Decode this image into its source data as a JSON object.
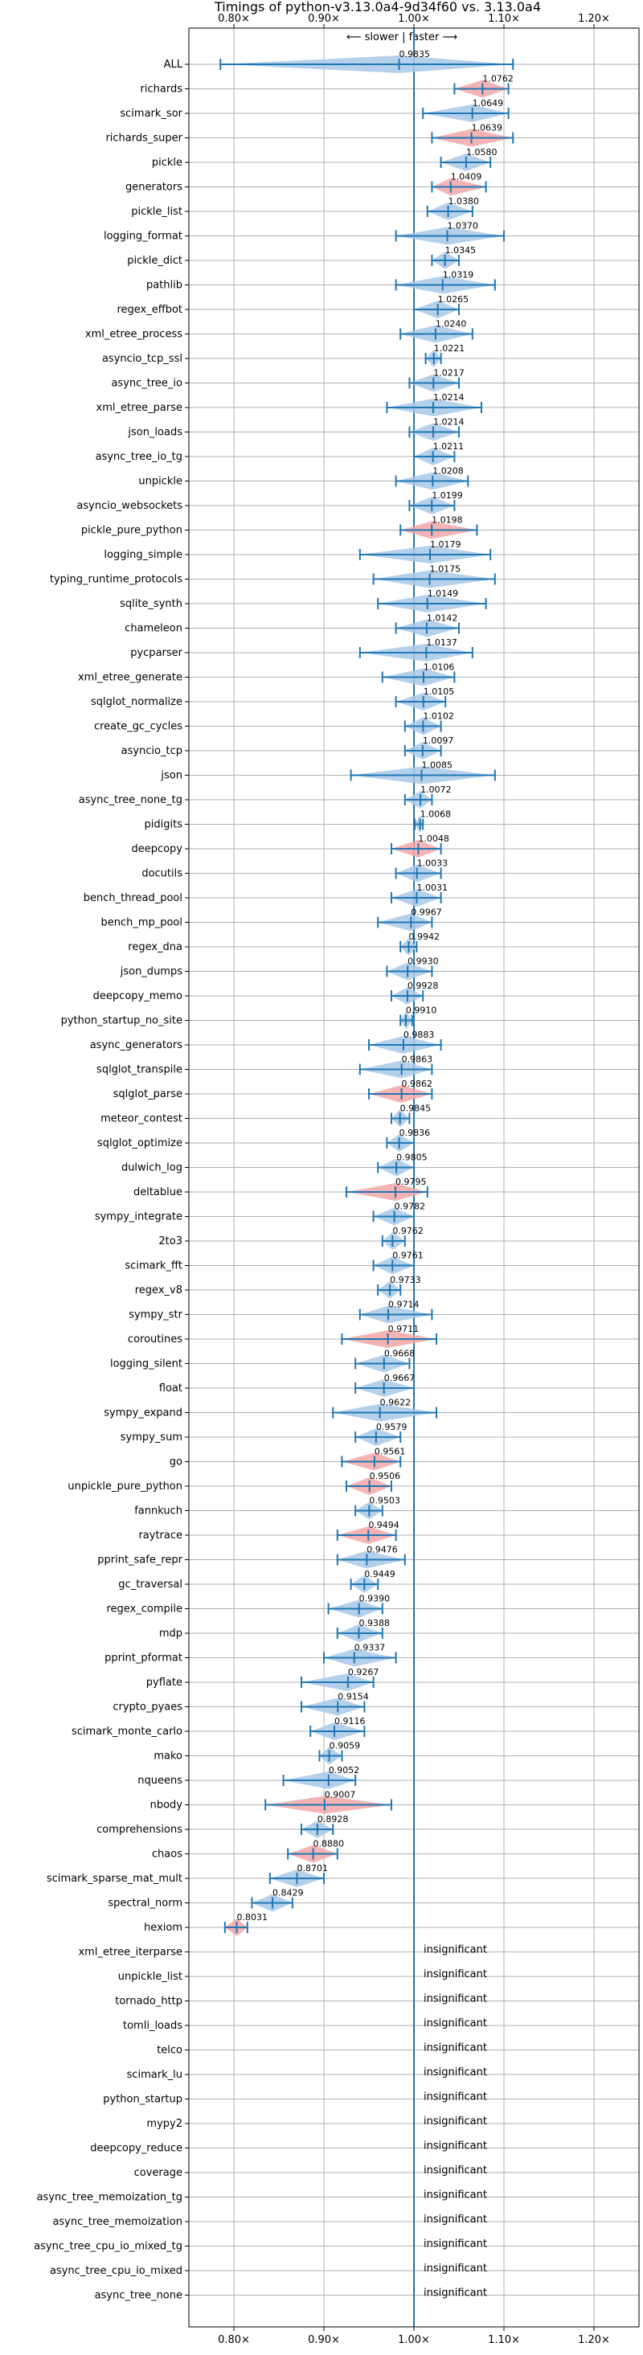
{
  "chart_data": {
    "type": "violin",
    "title": "Timings of python-v3.13.0a4-9d34f60 vs. 3.13.0a4",
    "direction_label": "⟵ slower | faster ⟶",
    "x_ticks": [
      "0.80×",
      "0.90×",
      "1.00×",
      "1.10×",
      "1.20×"
    ],
    "x_tick_values": [
      0.8,
      0.9,
      1.0,
      1.1,
      1.2
    ],
    "xlim": [
      0.75,
      1.25
    ],
    "grid": true,
    "colors": {
      "faster": "#a8c8e8",
      "slower": "#f4a6a6",
      "errorbar": "#1f77b4",
      "reference_line": "#1f77b4"
    },
    "insignificant_label": "insignificant",
    "benchmarks": [
      {
        "name": "ALL",
        "value": 0.9835,
        "display": "0.9835",
        "lo": 0.785,
        "hi": 1.11,
        "color": "faster"
      },
      {
        "name": "richards",
        "value": 1.0762,
        "display": "1.0762",
        "lo": 1.045,
        "hi": 1.105,
        "color": "slower"
      },
      {
        "name": "scimark_sor",
        "value": 1.0649,
        "display": "1.0649",
        "lo": 1.01,
        "hi": 1.105,
        "color": "faster"
      },
      {
        "name": "richards_super",
        "value": 1.0639,
        "display": "1.0639",
        "lo": 1.02,
        "hi": 1.11,
        "color": "slower"
      },
      {
        "name": "pickle",
        "value": 1.058,
        "display": "1.0580",
        "lo": 1.03,
        "hi": 1.085,
        "color": "faster"
      },
      {
        "name": "generators",
        "value": 1.0409,
        "display": "1.0409",
        "lo": 1.02,
        "hi": 1.08,
        "color": "slower"
      },
      {
        "name": "pickle_list",
        "value": 1.038,
        "display": "1.0380",
        "lo": 1.015,
        "hi": 1.065,
        "color": "faster"
      },
      {
        "name": "logging_format",
        "value": 1.037,
        "display": "1.0370",
        "lo": 0.98,
        "hi": 1.1,
        "color": "faster"
      },
      {
        "name": "pickle_dict",
        "value": 1.0345,
        "display": "1.0345",
        "lo": 1.02,
        "hi": 1.05,
        "color": "faster"
      },
      {
        "name": "pathlib",
        "value": 1.0319,
        "display": "1.0319",
        "lo": 0.98,
        "hi": 1.09,
        "color": "faster"
      },
      {
        "name": "regex_effbot",
        "value": 1.0265,
        "display": "1.0265",
        "lo": 1.0,
        "hi": 1.05,
        "color": "faster"
      },
      {
        "name": "xml_etree_process",
        "value": 1.024,
        "display": "1.0240",
        "lo": 0.985,
        "hi": 1.065,
        "color": "faster"
      },
      {
        "name": "asyncio_tcp_ssl",
        "value": 1.0221,
        "display": "1.0221",
        "lo": 1.013,
        "hi": 1.03,
        "color": "faster"
      },
      {
        "name": "async_tree_io",
        "value": 1.0217,
        "display": "1.0217",
        "lo": 0.995,
        "hi": 1.05,
        "color": "faster"
      },
      {
        "name": "xml_etree_parse",
        "value": 1.0214,
        "display": "1.0214",
        "lo": 0.97,
        "hi": 1.075,
        "color": "faster"
      },
      {
        "name": "json_loads",
        "value": 1.0214,
        "display": "1.0214",
        "lo": 0.995,
        "hi": 1.05,
        "color": "faster"
      },
      {
        "name": "async_tree_io_tg",
        "value": 1.0211,
        "display": "1.0211",
        "lo": 1.0,
        "hi": 1.045,
        "color": "faster"
      },
      {
        "name": "unpickle",
        "value": 1.0208,
        "display": "1.0208",
        "lo": 0.98,
        "hi": 1.06,
        "color": "faster"
      },
      {
        "name": "asyncio_websockets",
        "value": 1.0199,
        "display": "1.0199",
        "lo": 0.995,
        "hi": 1.045,
        "color": "faster"
      },
      {
        "name": "pickle_pure_python",
        "value": 1.0198,
        "display": "1.0198",
        "lo": 0.985,
        "hi": 1.07,
        "color": "slower"
      },
      {
        "name": "logging_simple",
        "value": 1.0179,
        "display": "1.0179",
        "lo": 0.94,
        "hi": 1.085,
        "color": "faster"
      },
      {
        "name": "typing_runtime_protocols",
        "value": 1.0175,
        "display": "1.0175",
        "lo": 0.955,
        "hi": 1.09,
        "color": "faster"
      },
      {
        "name": "sqlite_synth",
        "value": 1.0149,
        "display": "1.0149",
        "lo": 0.96,
        "hi": 1.08,
        "color": "faster"
      },
      {
        "name": "chameleon",
        "value": 1.0142,
        "display": "1.0142",
        "lo": 0.98,
        "hi": 1.05,
        "color": "faster"
      },
      {
        "name": "pycparser",
        "value": 1.0137,
        "display": "1.0137",
        "lo": 0.94,
        "hi": 1.065,
        "color": "faster"
      },
      {
        "name": "xml_etree_generate",
        "value": 1.0106,
        "display": "1.0106",
        "lo": 0.965,
        "hi": 1.045,
        "color": "faster"
      },
      {
        "name": "sqlglot_normalize",
        "value": 1.0105,
        "display": "1.0105",
        "lo": 0.98,
        "hi": 1.035,
        "color": "faster"
      },
      {
        "name": "create_gc_cycles",
        "value": 1.0102,
        "display": "1.0102",
        "lo": 0.99,
        "hi": 1.03,
        "color": "faster"
      },
      {
        "name": "asyncio_tcp",
        "value": 1.0097,
        "display": "1.0097",
        "lo": 0.99,
        "hi": 1.03,
        "color": "faster"
      },
      {
        "name": "json",
        "value": 1.0085,
        "display": "1.0085",
        "lo": 0.93,
        "hi": 1.09,
        "color": "faster"
      },
      {
        "name": "async_tree_none_tg",
        "value": 1.0072,
        "display": "1.0072",
        "lo": 0.99,
        "hi": 1.02,
        "color": "faster"
      },
      {
        "name": "pidigits",
        "value": 1.0068,
        "display": "1.0068",
        "lo": 1.001,
        "hi": 1.01,
        "color": "faster"
      },
      {
        "name": "deepcopy",
        "value": 1.0048,
        "display": "1.0048",
        "lo": 0.975,
        "hi": 1.03,
        "color": "slower"
      },
      {
        "name": "docutils",
        "value": 1.0033,
        "display": "1.0033",
        "lo": 0.98,
        "hi": 1.03,
        "color": "faster"
      },
      {
        "name": "bench_thread_pool",
        "value": 1.0031,
        "display": "1.0031",
        "lo": 0.975,
        "hi": 1.03,
        "color": "faster"
      },
      {
        "name": "bench_mp_pool",
        "value": 0.9967,
        "display": "0.9967",
        "lo": 0.96,
        "hi": 1.02,
        "color": "faster"
      },
      {
        "name": "regex_dna",
        "value": 0.9942,
        "display": "0.9942",
        "lo": 0.985,
        "hi": 1.003,
        "color": "faster"
      },
      {
        "name": "json_dumps",
        "value": 0.993,
        "display": "0.9930",
        "lo": 0.97,
        "hi": 1.02,
        "color": "faster"
      },
      {
        "name": "deepcopy_memo",
        "value": 0.9928,
        "display": "0.9928",
        "lo": 0.975,
        "hi": 1.01,
        "color": "faster"
      },
      {
        "name": "python_startup_no_site",
        "value": 0.991,
        "display": "0.9910",
        "lo": 0.985,
        "hi": 0.998,
        "color": "faster"
      },
      {
        "name": "async_generators",
        "value": 0.9883,
        "display": "0.9883",
        "lo": 0.95,
        "hi": 1.03,
        "color": "faster"
      },
      {
        "name": "sqlglot_transpile",
        "value": 0.9863,
        "display": "0.9863",
        "lo": 0.94,
        "hi": 1.02,
        "color": "faster"
      },
      {
        "name": "sqlglot_parse",
        "value": 0.9862,
        "display": "0.9862",
        "lo": 0.95,
        "hi": 1.02,
        "color": "slower"
      },
      {
        "name": "meteor_contest",
        "value": 0.9845,
        "display": "0.9845",
        "lo": 0.975,
        "hi": 0.995,
        "color": "faster"
      },
      {
        "name": "sqlglot_optimize",
        "value": 0.9836,
        "display": "0.9836",
        "lo": 0.97,
        "hi": 1.0,
        "color": "faster"
      },
      {
        "name": "dulwich_log",
        "value": 0.9805,
        "display": "0.9805",
        "lo": 0.96,
        "hi": 1.0,
        "color": "faster"
      },
      {
        "name": "deltablue",
        "value": 0.9795,
        "display": "0.9795",
        "lo": 0.925,
        "hi": 1.015,
        "color": "slower"
      },
      {
        "name": "sympy_integrate",
        "value": 0.9782,
        "display": "0.9782",
        "lo": 0.955,
        "hi": 1.0,
        "color": "faster"
      },
      {
        "name": "2to3",
        "value": 0.9762,
        "display": "0.9762",
        "lo": 0.965,
        "hi": 0.99,
        "color": "faster"
      },
      {
        "name": "scimark_fft",
        "value": 0.9761,
        "display": "0.9761",
        "lo": 0.955,
        "hi": 1.0,
        "color": "faster"
      },
      {
        "name": "regex_v8",
        "value": 0.9733,
        "display": "0.9733",
        "lo": 0.96,
        "hi": 0.985,
        "color": "faster"
      },
      {
        "name": "sympy_str",
        "value": 0.9714,
        "display": "0.9714",
        "lo": 0.94,
        "hi": 1.02,
        "color": "faster"
      },
      {
        "name": "coroutines",
        "value": 0.9711,
        "display": "0.9711",
        "lo": 0.92,
        "hi": 1.025,
        "color": "slower"
      },
      {
        "name": "logging_silent",
        "value": 0.9668,
        "display": "0.9668",
        "lo": 0.935,
        "hi": 0.995,
        "color": "faster"
      },
      {
        "name": "float",
        "value": 0.9667,
        "display": "0.9667",
        "lo": 0.935,
        "hi": 1.0,
        "color": "faster"
      },
      {
        "name": "sympy_expand",
        "value": 0.9622,
        "display": "0.9622",
        "lo": 0.91,
        "hi": 1.025,
        "color": "faster"
      },
      {
        "name": "sympy_sum",
        "value": 0.9579,
        "display": "0.9579",
        "lo": 0.935,
        "hi": 0.985,
        "color": "faster"
      },
      {
        "name": "go",
        "value": 0.9561,
        "display": "0.9561",
        "lo": 0.92,
        "hi": 0.985,
        "color": "slower"
      },
      {
        "name": "unpickle_pure_python",
        "value": 0.9506,
        "display": "0.9506",
        "lo": 0.925,
        "hi": 0.975,
        "color": "slower"
      },
      {
        "name": "fannkuch",
        "value": 0.9503,
        "display": "0.9503",
        "lo": 0.935,
        "hi": 0.965,
        "color": "faster"
      },
      {
        "name": "raytrace",
        "value": 0.9494,
        "display": "0.9494",
        "lo": 0.915,
        "hi": 0.98,
        "color": "slower"
      },
      {
        "name": "pprint_safe_repr",
        "value": 0.9476,
        "display": "0.9476",
        "lo": 0.915,
        "hi": 0.99,
        "color": "faster"
      },
      {
        "name": "gc_traversal",
        "value": 0.9449,
        "display": "0.9449",
        "lo": 0.93,
        "hi": 0.96,
        "color": "faster"
      },
      {
        "name": "regex_compile",
        "value": 0.939,
        "display": "0.9390",
        "lo": 0.905,
        "hi": 0.965,
        "color": "faster"
      },
      {
        "name": "mdp",
        "value": 0.9388,
        "display": "0.9388",
        "lo": 0.915,
        "hi": 0.965,
        "color": "faster"
      },
      {
        "name": "pprint_pformat",
        "value": 0.9337,
        "display": "0.9337",
        "lo": 0.9,
        "hi": 0.98,
        "color": "faster"
      },
      {
        "name": "pyflate",
        "value": 0.9267,
        "display": "0.9267",
        "lo": 0.875,
        "hi": 0.955,
        "color": "faster"
      },
      {
        "name": "crypto_pyaes",
        "value": 0.9154,
        "display": "0.9154",
        "lo": 0.875,
        "hi": 0.945,
        "color": "faster"
      },
      {
        "name": "scimark_monte_carlo",
        "value": 0.9116,
        "display": "0.9116",
        "lo": 0.885,
        "hi": 0.945,
        "color": "faster"
      },
      {
        "name": "mako",
        "value": 0.9059,
        "display": "0.9059",
        "lo": 0.895,
        "hi": 0.92,
        "color": "faster"
      },
      {
        "name": "nqueens",
        "value": 0.9052,
        "display": "0.9052",
        "lo": 0.855,
        "hi": 0.935,
        "color": "faster"
      },
      {
        "name": "nbody",
        "value": 0.9007,
        "display": "0.9007",
        "lo": 0.835,
        "hi": 0.975,
        "color": "slower"
      },
      {
        "name": "comprehensions",
        "value": 0.8928,
        "display": "0.8928",
        "lo": 0.875,
        "hi": 0.91,
        "color": "faster"
      },
      {
        "name": "chaos",
        "value": 0.888,
        "display": "0.8880",
        "lo": 0.86,
        "hi": 0.915,
        "color": "slower"
      },
      {
        "name": "scimark_sparse_mat_mult",
        "value": 0.8701,
        "display": "0.8701",
        "lo": 0.84,
        "hi": 0.9,
        "color": "faster"
      },
      {
        "name": "spectral_norm",
        "value": 0.8429,
        "display": "0.8429",
        "lo": 0.82,
        "hi": 0.865,
        "color": "faster"
      },
      {
        "name": "hexiom",
        "value": 0.8031,
        "display": "0.8031",
        "lo": 0.79,
        "hi": 0.815,
        "color": "slower"
      }
    ],
    "insignificant": [
      "xml_etree_iterparse",
      "unpickle_list",
      "tornado_http",
      "tomli_loads",
      "telco",
      "scimark_lu",
      "python_startup",
      "mypy2",
      "deepcopy_reduce",
      "coverage",
      "async_tree_memoization_tg",
      "async_tree_memoization",
      "async_tree_cpu_io_mixed_tg",
      "async_tree_cpu_io_mixed",
      "async_tree_none"
    ]
  }
}
